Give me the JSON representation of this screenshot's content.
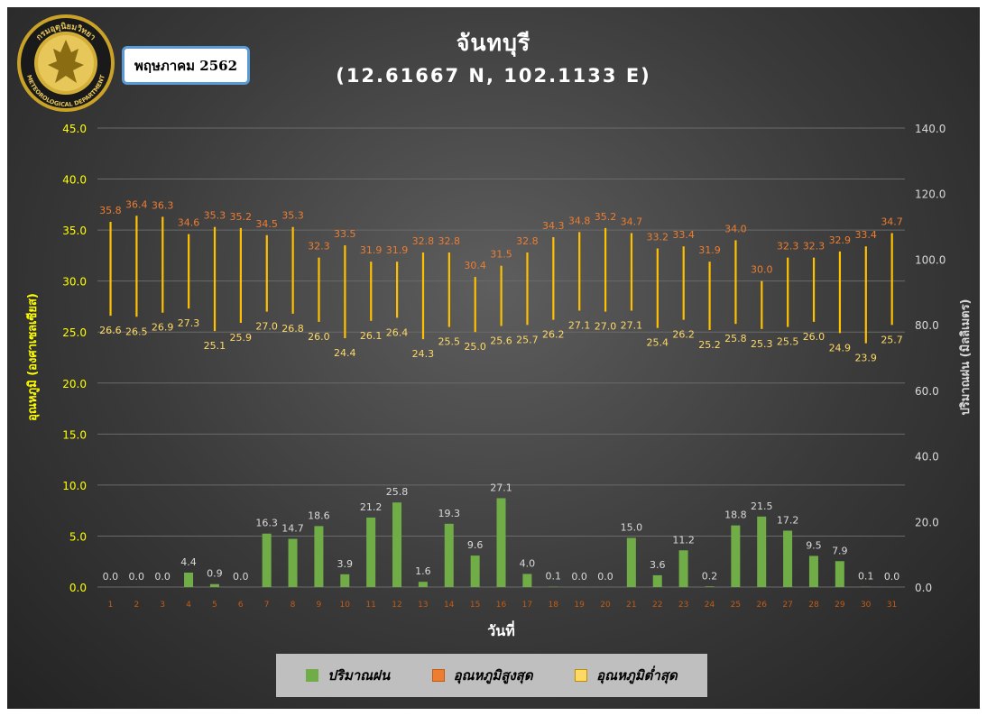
{
  "month_label": "พฤษภาคม 2562",
  "chart_data": {
    "type": "bar",
    "title": "จันทบุรี",
    "subtitle": "(12.61667 N, 102.1133 E)",
    "xlabel": "วันที่",
    "ylabel_left": "อุณหภูมิ (องศาเซลเซียส)",
    "ylabel_right": "ปริมาณฝน (มิลลิเมตร)",
    "ylim_left": [
      0,
      45
    ],
    "ylim_right": [
      0,
      140
    ],
    "yticks_left": [
      "0.0",
      "5.0",
      "10.0",
      "15.0",
      "20.0",
      "25.0",
      "30.0",
      "35.0",
      "40.0",
      "45.0"
    ],
    "yticks_right": [
      "0.0",
      "20.0",
      "40.0",
      "60.0",
      "80.0",
      "100.0",
      "120.0",
      "140.0"
    ],
    "categories": [
      "1",
      "2",
      "3",
      "4",
      "5",
      "6",
      "7",
      "8",
      "9",
      "10",
      "11",
      "12",
      "13",
      "14",
      "15",
      "16",
      "17",
      "18",
      "19",
      "20",
      "21",
      "22",
      "23",
      "24",
      "25",
      "26",
      "27",
      "28",
      "29",
      "30",
      "31"
    ],
    "series": [
      {
        "name": "ปริมาณฝน",
        "axis": "right",
        "color": "#70ad47",
        "values": [
          0.0,
          0.0,
          0.0,
          4.4,
          0.9,
          0.0,
          16.3,
          14.7,
          18.6,
          3.9,
          21.2,
          25.8,
          1.6,
          19.3,
          9.6,
          27.1,
          4.0,
          0.1,
          0.0,
          0.0,
          15.0,
          3.6,
          11.2,
          0.2,
          18.8,
          21.5,
          17.2,
          9.5,
          7.9,
          0.1,
          0.0
        ]
      },
      {
        "name": "อุณหภูมิสูงสุด",
        "axis": "left",
        "color": "#ed7d31",
        "values": [
          35.8,
          36.4,
          36.3,
          34.6,
          35.3,
          35.2,
          34.5,
          35.3,
          32.3,
          33.5,
          31.9,
          31.9,
          32.8,
          32.8,
          30.4,
          31.5,
          32.8,
          34.3,
          34.8,
          35.2,
          34.7,
          33.2,
          33.4,
          31.9,
          34.0,
          30.0,
          32.3,
          32.3,
          32.9,
          33.4,
          34.7
        ]
      },
      {
        "name": "อุณหภูมิต่ำสุด",
        "axis": "left",
        "color": "#ffd966",
        "values": [
          26.6,
          26.5,
          26.9,
          27.3,
          25.1,
          25.9,
          27.0,
          26.8,
          26.0,
          24.4,
          26.1,
          26.4,
          24.3,
          25.5,
          25.0,
          25.6,
          25.7,
          26.2,
          27.1,
          27.0,
          27.1,
          25.4,
          26.2,
          25.2,
          25.8,
          25.3,
          25.5,
          26.0,
          24.9,
          23.9,
          25.7
        ]
      }
    ],
    "colors": {
      "axis_left": "#ffff00",
      "axis_right": "#d9d9d9",
      "category_ticks": "#c55a11",
      "range_bar": "#ffc000"
    }
  },
  "legend": [
    {
      "label": "ปริมาณฝน",
      "color": "#70ad47",
      "border": "#70ad47"
    },
    {
      "label": "อุณหภูมิสูงสุด",
      "color": "#ed7d31",
      "border": "#c55a11"
    },
    {
      "label": "อุณหภูมิต่ำสุด",
      "color": "#ffd966",
      "border": "#bf9000"
    }
  ],
  "logo": {
    "icon": "meteorological-department-seal-icon",
    "text_top": "กรมอุตุนิยมวิทยา",
    "text_bottom": "METEOROLOGICAL DEPARTMENT"
  }
}
